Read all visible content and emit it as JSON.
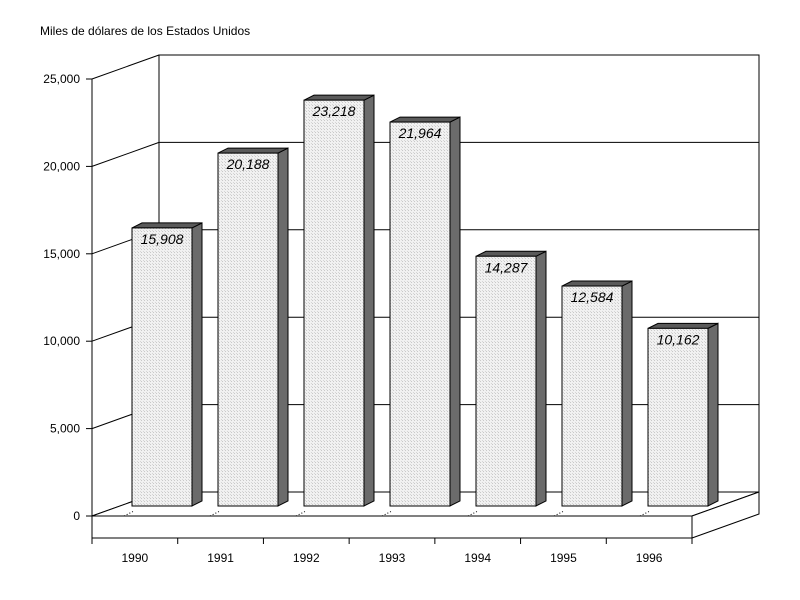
{
  "chart_data": {
    "type": "bar",
    "ylabel": "Miles de dólares de los Estados Unidos",
    "categories": [
      "1990",
      "1991",
      "1992",
      "1993",
      "1994",
      "1995",
      "1996"
    ],
    "values": [
      15908,
      20188,
      23218,
      21964,
      14287,
      12584,
      10162
    ],
    "value_labels": [
      "15,908",
      "20,188",
      "23,218",
      "21,964",
      "14,287",
      "12,584",
      "10,162"
    ],
    "ylim": [
      0,
      25000
    ],
    "yticks": [
      0,
      5000,
      10000,
      15000,
      20000,
      25000
    ],
    "ytick_labels": [
      "0",
      "5,000",
      "10,000",
      "15,000",
      "20,000",
      "25,000"
    ],
    "grid": true,
    "three_d": true
  }
}
